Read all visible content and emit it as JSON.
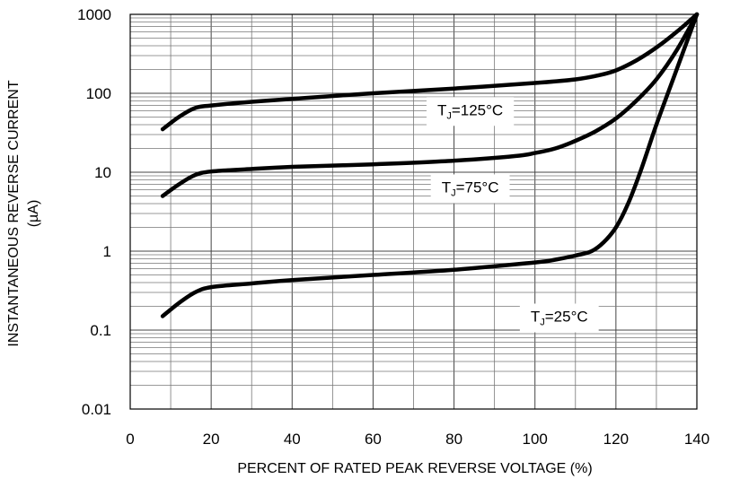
{
  "chart_data": {
    "type": "line",
    "xlabel": "PERCENT OF RATED PEAK REVERSE VOLTAGE (%)",
    "ylabel": "INSTANTANEOUS REVERSE CURRENT",
    "ylabel_unit": "(µA)",
    "y_scale": "log",
    "xlim": [
      0,
      140
    ],
    "ylim": [
      0.01,
      1000
    ],
    "grid": true,
    "x_ticks": [
      0,
      20,
      40,
      60,
      80,
      100,
      120,
      140
    ],
    "x_tick_labels": [
      "0",
      "20",
      "40",
      "60",
      "80",
      "100",
      "120",
      "140"
    ],
    "y_ticks": [
      0.01,
      0.1,
      1,
      10,
      100,
      1000
    ],
    "y_tick_labels": [
      "0.01",
      "0.1",
      "1",
      "10",
      "100",
      "1000"
    ],
    "series": [
      {
        "label_main": "T",
        "label_sub": "J",
        "label_rest": "=125°C",
        "label_pos": [
          84,
          62
        ],
        "color": "#000000",
        "points": [
          [
            8,
            35
          ],
          [
            12,
            50
          ],
          [
            16,
            65
          ],
          [
            20,
            70
          ],
          [
            30,
            78
          ],
          [
            40,
            85
          ],
          [
            60,
            100
          ],
          [
            80,
            115
          ],
          [
            100,
            135
          ],
          [
            110,
            150
          ],
          [
            116,
            170
          ],
          [
            120,
            195
          ],
          [
            125,
            260
          ],
          [
            130,
            380
          ],
          [
            135,
            600
          ],
          [
            140,
            1000
          ]
        ]
      },
      {
        "label_main": "T",
        "label_sub": "J",
        "label_rest": "=75°C",
        "label_pos": [
          84,
          6.5
        ],
        "color": "#000000",
        "points": [
          [
            8,
            5
          ],
          [
            12,
            7
          ],
          [
            16,
            9.2
          ],
          [
            20,
            10.2
          ],
          [
            30,
            11
          ],
          [
            40,
            11.7
          ],
          [
            60,
            12.6
          ],
          [
            80,
            14
          ],
          [
            95,
            16
          ],
          [
            100,
            17.5
          ],
          [
            105,
            20
          ],
          [
            110,
            25
          ],
          [
            115,
            33
          ],
          [
            120,
            48
          ],
          [
            125,
            80
          ],
          [
            130,
            150
          ],
          [
            135,
            350
          ],
          [
            140,
            1000
          ]
        ]
      },
      {
        "label_main": "T",
        "label_sub": "J",
        "label_rest": "=25°C",
        "label_pos": [
          106,
          0.15
        ],
        "color": "#000000",
        "points": [
          [
            8,
            0.15
          ],
          [
            12,
            0.22
          ],
          [
            16,
            0.3
          ],
          [
            20,
            0.35
          ],
          [
            30,
            0.39
          ],
          [
            40,
            0.43
          ],
          [
            60,
            0.5
          ],
          [
            80,
            0.58
          ],
          [
            100,
            0.72
          ],
          [
            105,
            0.78
          ],
          [
            110,
            0.88
          ],
          [
            114,
            1.0
          ],
          [
            117,
            1.3
          ],
          [
            120,
            2.0
          ],
          [
            123,
            4
          ],
          [
            126,
            10
          ],
          [
            130,
            40
          ],
          [
            135,
            200
          ],
          [
            140,
            1000
          ]
        ]
      }
    ]
  }
}
